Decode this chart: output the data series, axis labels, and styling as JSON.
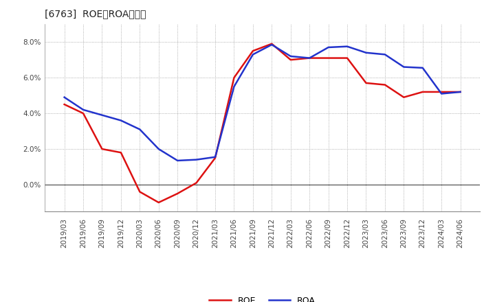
{
  "title": "[6763]  ROE、ROAの推移",
  "dates": [
    "2019/03",
    "2019/06",
    "2019/09",
    "2019/12",
    "2020/03",
    "2020/06",
    "2020/09",
    "2020/12",
    "2021/03",
    "2021/06",
    "2021/09",
    "2021/12",
    "2022/03",
    "2022/06",
    "2022/09",
    "2022/12",
    "2023/03",
    "2023/06",
    "2023/09",
    "2023/12",
    "2024/03",
    "2024/06"
  ],
  "roe_values": [
    4.5,
    4.0,
    2.0,
    1.8,
    -0.4,
    -1.0,
    -0.5,
    0.1,
    1.5,
    6.0,
    7.5,
    7.9,
    7.0,
    7.1,
    7.1,
    7.1,
    5.7,
    5.6,
    4.9,
    5.2,
    5.2,
    5.2
  ],
  "roa_values": [
    4.9,
    4.2,
    3.9,
    3.6,
    3.1,
    2.0,
    1.35,
    1.4,
    1.55,
    5.5,
    7.3,
    7.85,
    7.2,
    7.1,
    7.7,
    7.75,
    7.4,
    7.3,
    6.6,
    6.55,
    5.1,
    5.2
  ],
  "roe_color": "#dd1111",
  "roa_color": "#2233cc",
  "bg_color": "#ffffff",
  "grid_color": "#999999",
  "ylim": [
    -1.5,
    9.0
  ],
  "yticks": [
    0.0,
    2.0,
    4.0,
    6.0,
    8.0
  ],
  "title_fontsize": 11,
  "tick_fontsize": 7.5,
  "legend_fontsize": 9
}
